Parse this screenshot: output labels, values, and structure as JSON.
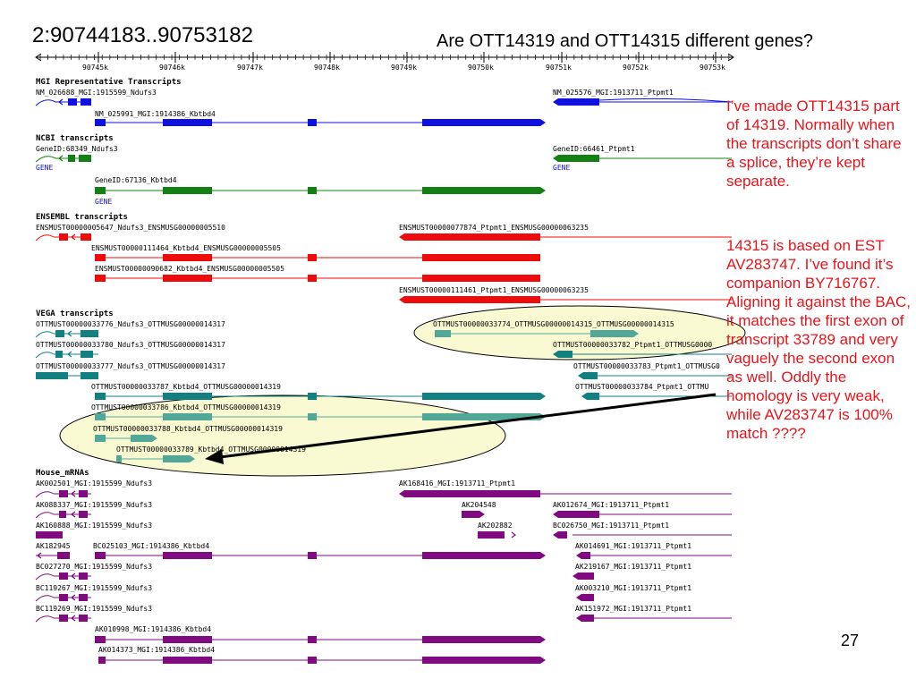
{
  "slide": {
    "title": "2:90744183..90753182",
    "question": "Are OTT14319 and OTT14315 different genes?",
    "note_1": "I’ve made OTT14315 part of 14319. Normally when the transcripts don’t share a splice, they’re kept separate.",
    "note_2": "14315 is based on EST AV283747. I’ve found it’s companion BY716767. Aligning it against the BAC, it matches the first exon of transcript 33789 and very vaguely the second exon as well. Oddly the homology is very weak, while AV283747 is 100% match ????",
    "page_number": "27"
  },
  "colors": {
    "mgi": "#1010e0",
    "ncbi": "#138013",
    "ensembl": "#ee0b0b",
    "vega": "#128080",
    "vega_highlight": "#52a898",
    "mrna": "#800a80",
    "highlight_fill": "#fafad2",
    "annotation": "#e8141b"
  },
  "ruler": {
    "ticks": [
      "90745k",
      "90746k",
      "90747k",
      "90748k",
      "90749k",
      "90750k",
      "90751k",
      "90752k",
      "90753k"
    ]
  },
  "tracks": {
    "mgi": {
      "title": "MGI Representative Transcripts",
      "labels": [
        "NM_026688_MGI:1915599_Ndufs3",
        "NM_025991_MGI:1914386_Kbtbd4",
        "NM_025576_MGI:1913711_Ptpmt1"
      ]
    },
    "ncbi": {
      "title": "NCBI transcripts",
      "labels": [
        "GeneID:68349_Ndufs3",
        "GENE",
        "GeneID:66461_Ptpmt1",
        "GENE",
        "GeneID:67136_Kbtbd4",
        "GENE"
      ]
    },
    "ensembl": {
      "title": "ENSEMBL transcripts",
      "labels": [
        "ENSMUST00000005647_Ndufs3_ENSMUSG00000005510",
        "ENSMUST00000077874_Ptpmt1_ENSMUSG00000063235",
        "ENSMUST00000111464_Kbtbd4_ENSMUSG00000005505",
        "ENSMUST00000090682_Kbtbd4_ENSMUSG00000005505",
        "ENSMUST00000111461_Ptpmt1_ENSMUSG00000063235"
      ]
    },
    "vega": {
      "title": "VEGA transcripts",
      "labels": [
        "OTTMUST00000033776_Ndufs3_OTTMUSG00000014317",
        "OTTMUST00000033774_OTTMUSG00000014315_OTTMUSG00000014315",
        "OTTMUST00000033780_Ndufs3_OTTMUSG00000014317",
        "OTTMUST00000033782_Ptpmt1_OTTMUSG0000",
        "OTTMUST00000033777_Ndufs3_OTTMUSG00000014317",
        "OTTMUST00000033783_Ptpmt1_OTTMUSG0",
        "OTTMUST00000033787_Kbtbd4_OTTMUSG00000014319",
        "OTTMUST00000033784_Ptpmt1_OTTMU",
        "OTTMUST00000033786_Kbtbd4_OTTMUSG00000014319",
        "OTTMUST00000033788_Kbtbd4_OTTMUSG00000014319",
        "OTTMUST00000033789_Kbtbd4_OTTMUSG00000014319"
      ]
    },
    "mrna": {
      "title": "Mouse_mRNAs",
      "labels": [
        "AK002501_MGI:1915599_Ndufs3",
        "AK168416_MGI:1913711_Ptpmt1",
        "AK088337_MGI:1915599_Ndufs3",
        "AK204548",
        "AK012674_MGI:1913711_Ptpmt1",
        "AK160888_MGI:1915599_Ndufs3",
        "AK202882",
        "BC026750_MGI:1913711_Ptpmt1",
        "AK182945",
        "BC025103_MGI:1914386_Kbtbd4",
        "AK014691_MGI:1913711_Ptpmt1",
        "BC027270_MGI:1915599_Ndufs3",
        "AK219167_MGI:1913711_Ptpmt1",
        "BC119267_MGI:1915599_Ndufs3",
        "AK003210_MGI:1913711_Ptpmt1",
        "BC119269_MGI:1915599_Ndufs3",
        "AK151972_MGI:1913711_Ptpmt1",
        "AK010998_MGI:1914386_Kbtbd4",
        "AK014373_MGI:1914386_Kbtbd4"
      ]
    }
  }
}
